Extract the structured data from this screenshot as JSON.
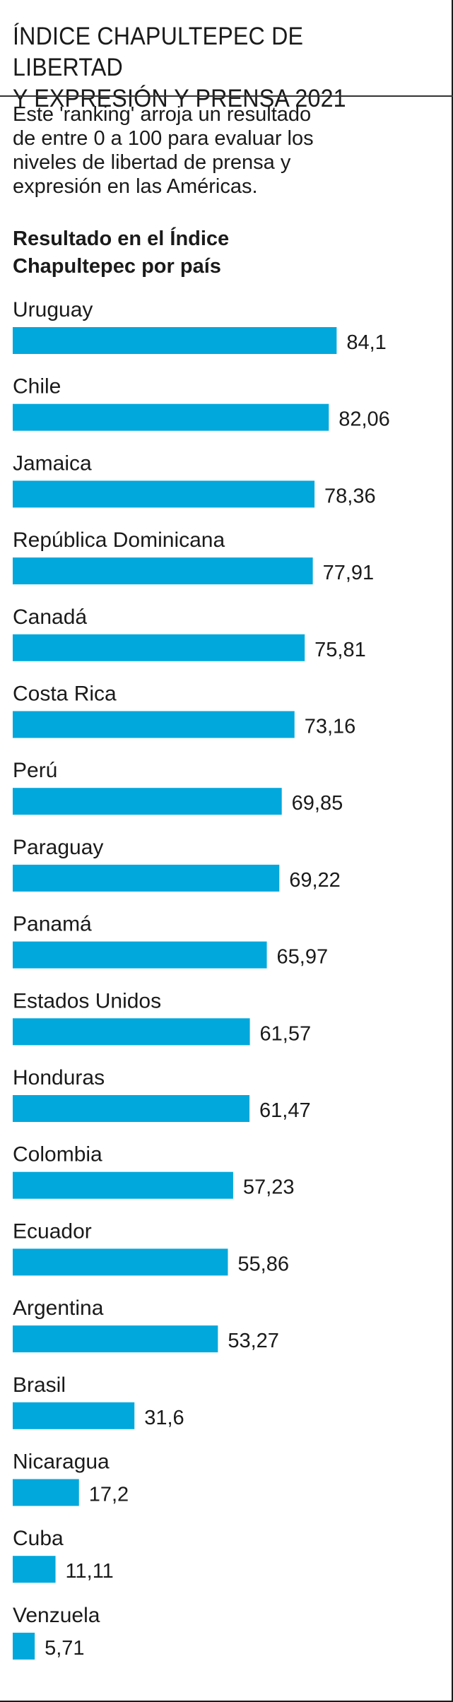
{
  "title": "ÍNDICE CHAPULTEPEC DE LIBERTAD\nY EXPRESIÓN Y PRENSA 2021",
  "description": "Este 'ranking' arroja un resultado\nde entre 0 a 100 para evaluar los\nniveles de libertad de prensa y\nexpresión  en las Américas.",
  "chart_data": {
    "type": "bar",
    "orientation": "horizontal",
    "title": "Resultado en el Índice\nChapultepec por país",
    "bar_color": "#00a8dc",
    "xlim": [
      0,
      100
    ],
    "grid": false,
    "categories": [
      "Uruguay",
      "Chile",
      "Jamaica",
      "República Dominicana",
      "Canadá",
      "Costa Rica",
      "Perú",
      "Paraguay",
      "Panamá",
      "Estados Unidos",
      "Honduras",
      "Colombia",
      "Ecuador",
      "Argentina",
      "Brasil",
      "Nicaragua",
      "Cuba",
      "Venzuela"
    ],
    "values": [
      84.1,
      82.06,
      78.36,
      77.91,
      75.81,
      73.16,
      69.85,
      69.22,
      65.97,
      61.57,
      61.47,
      57.23,
      55.86,
      53.27,
      31.6,
      17.2,
      11.11,
      5.71
    ],
    "value_labels": [
      "84,1",
      "82,06",
      "78,36",
      "77,91",
      "75,81",
      "73,16",
      "69,85",
      "69,22",
      "65,97",
      "61,57",
      "61,47",
      "57,23",
      "55,86",
      "53,27",
      "31,6",
      "17,2",
      "11,11",
      "5,71"
    ]
  }
}
